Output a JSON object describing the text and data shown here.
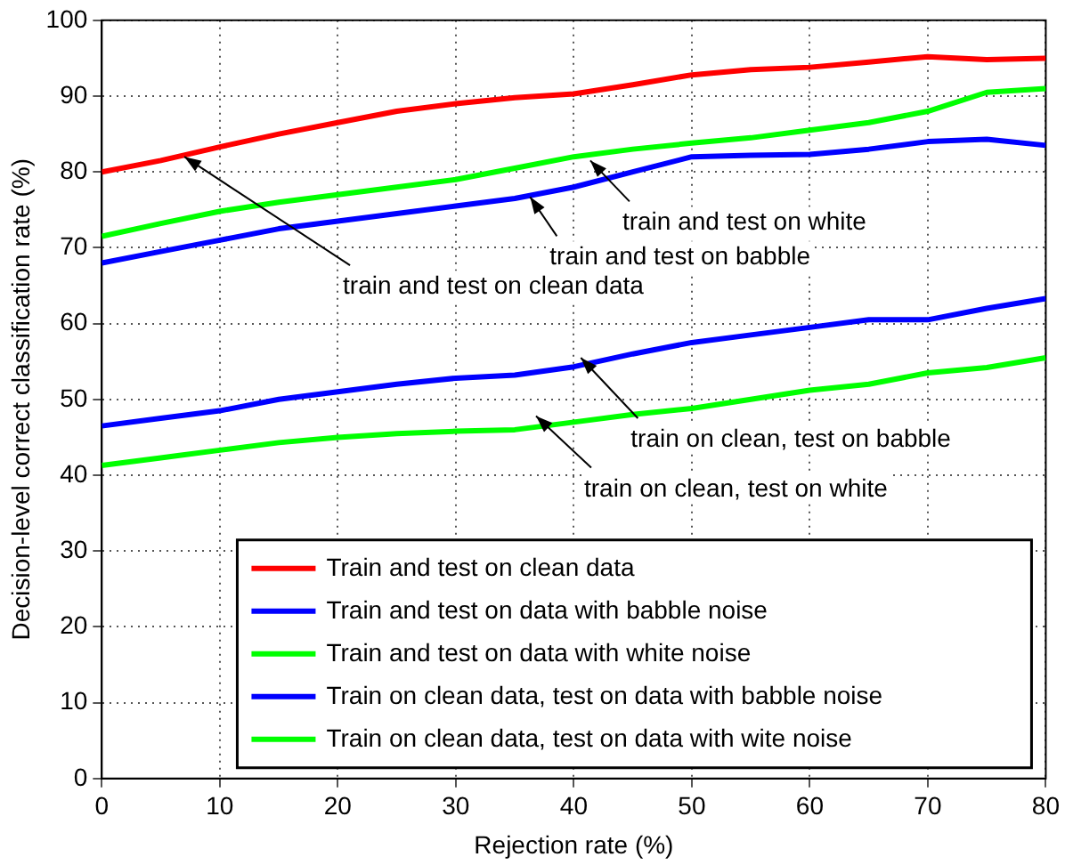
{
  "chart_data": {
    "type": "line",
    "xlabel": "Rejection rate (%)",
    "ylabel": "Decision-level correct classification rate (%)",
    "x": [
      0,
      5,
      10,
      15,
      20,
      25,
      30,
      35,
      40,
      45,
      50,
      55,
      60,
      65,
      70,
      75,
      80
    ],
    "xlim": [
      0,
      80
    ],
    "xticks": [
      0,
      10,
      20,
      30,
      40,
      50,
      60,
      70,
      80
    ],
    "ylim": [
      0,
      100
    ],
    "yticks": [
      0,
      10,
      20,
      30,
      40,
      50,
      60,
      70,
      80,
      90,
      100
    ],
    "grid": true,
    "legend": "bottom right",
    "series": [
      {
        "name": "Train and test on clean data",
        "color": "#ff0000",
        "values": [
          80,
          81.5,
          83.3,
          85,
          86.5,
          88,
          89,
          89.8,
          90.3,
          91.5,
          92.8,
          93.5,
          93.8,
          94.5,
          95.2,
          94.8,
          95
        ]
      },
      {
        "name": "Train and test on data with babble noise",
        "color": "#0000ff",
        "values": [
          68,
          69.5,
          71,
          72.5,
          73.5,
          74.5,
          75.5,
          76.5,
          78,
          80,
          82,
          82.2,
          82.3,
          83,
          84,
          84.3,
          83.5
        ]
      },
      {
        "name": "Train and test on data with white noise",
        "color": "#00ff00",
        "values": [
          71.5,
          73.2,
          74.8,
          76,
          77,
          78,
          79,
          80.5,
          82,
          83,
          83.8,
          84.5,
          85.5,
          86.5,
          88,
          90.5,
          91
        ]
      },
      {
        "name": "Train on clean data, test on data with babble noise",
        "color": "#0000ff",
        "values": [
          46.5,
          47.5,
          48.5,
          50,
          51,
          52,
          52.8,
          53.2,
          54.3,
          56,
          57.5,
          58.5,
          59.5,
          60.5,
          60.5,
          62,
          63.3
        ]
      },
      {
        "name": "Train on clean data, test on data with wite noise",
        "color": "#00ff00",
        "values": [
          41.3,
          42.3,
          43.3,
          44.3,
          45,
          45.5,
          45.8,
          46,
          47,
          48,
          48.8,
          50,
          51.2,
          52,
          53.5,
          54.2,
          55.5
        ]
      }
    ],
    "annotations": [
      {
        "text": "train and test on clean data",
        "x": 7,
        "y": 82
      },
      {
        "text": "train and test on white",
        "x": 41.4,
        "y": 81.5
      },
      {
        "text": "train and test on babble",
        "x": 36.3,
        "y": 76.7
      },
      {
        "text": "train on clean, test on babble",
        "x": 40.6,
        "y": 55.5
      },
      {
        "text": "train on clean, test on white",
        "x": 36.8,
        "y": 47.8
      }
    ]
  }
}
